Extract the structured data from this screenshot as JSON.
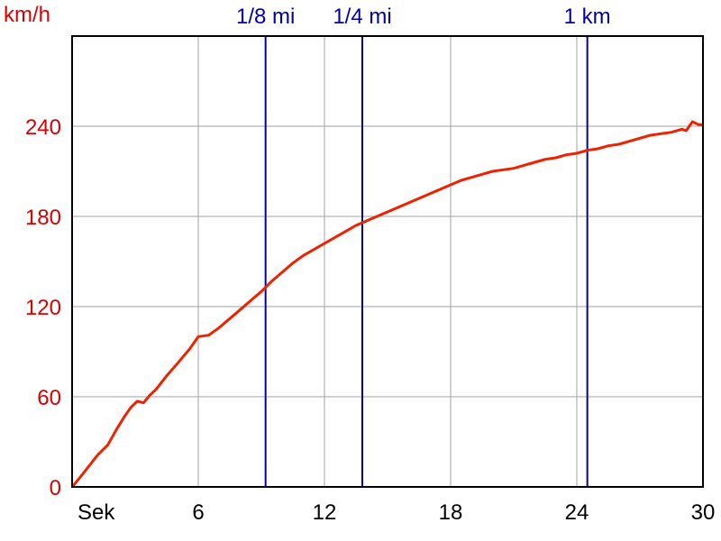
{
  "colors": {
    "axis_text_y": "#dd0000",
    "axis_text_x": "#000000",
    "marker": "#0000aa",
    "line": "#ee2200",
    "grid": "#a0a0a0",
    "frame": "#000000"
  },
  "chart_data": {
    "type": "line",
    "ylabel": "km/h",
    "xlabel": "Sek",
    "xlim": [
      0,
      30
    ],
    "ylim": [
      0,
      300
    ],
    "x_ticks": [
      6,
      12,
      18,
      24,
      30
    ],
    "y_ticks": [
      0,
      60,
      120,
      180,
      240
    ],
    "grid": true,
    "markers": [
      {
        "label": "1/8 mi",
        "x": 9.2
      },
      {
        "label": "1/4 mi",
        "x": 13.8
      },
      {
        "label": "1 km",
        "x": 24.5
      }
    ],
    "series": [
      {
        "x": [
          0,
          0.3,
          0.7,
          1.2,
          1.7,
          2.1,
          2.5,
          2.8,
          3.1,
          3.4,
          3.7,
          4.0,
          4.5,
          5.0,
          5.6,
          6.0,
          6.5,
          7.0,
          7.5,
          8.0,
          8.5,
          9.0,
          9.5,
          10.0,
          10.5,
          11.0,
          11.5,
          12.0,
          12.5,
          13.0,
          13.5,
          14.0,
          14.5,
          15.0,
          15.5,
          16.0,
          16.5,
          17.0,
          17.5,
          18.0,
          18.5,
          19.0,
          19.5,
          20.0,
          20.5,
          21.0,
          21.5,
          22.0,
          22.5,
          23.0,
          23.5,
          24.0,
          24.5,
          25.0,
          25.5,
          26.0,
          26.5,
          27.0,
          27.5,
          28.0,
          28.5,
          29.0,
          29.2,
          29.5,
          29.8,
          30.0
        ],
        "y": [
          0,
          5,
          12,
          21,
          28,
          38,
          47,
          53,
          57,
          56,
          61,
          65,
          74,
          82,
          92,
          100,
          101,
          106,
          112,
          118,
          124,
          130,
          137,
          143,
          149,
          154,
          158,
          162,
          166,
          170,
          174,
          177,
          180,
          183,
          186,
          189,
          192,
          195,
          198,
          201,
          204,
          206,
          208,
          210,
          211,
          212,
          214,
          216,
          218,
          219,
          221,
          222,
          224,
          225,
          227,
          228,
          230,
          232,
          234,
          235,
          236,
          238,
          237,
          243,
          241,
          241
        ]
      }
    ]
  }
}
